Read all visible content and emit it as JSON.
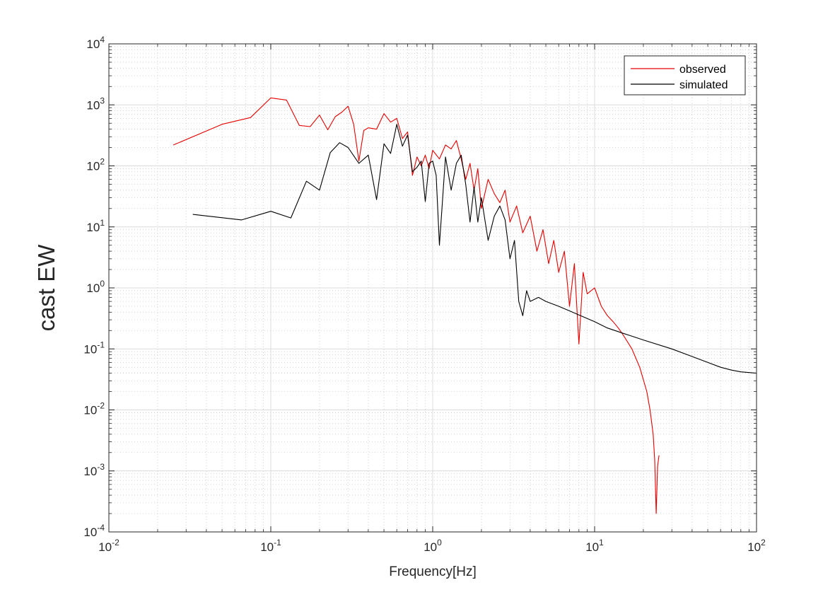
{
  "chart_data": {
    "type": "line",
    "xlabel": "Frequency[Hz]",
    "ylabel": "cast EW",
    "x_scale": "log",
    "y_scale": "log",
    "xlim": [
      0.01,
      100
    ],
    "ylim": [
      0.0001,
      10000
    ],
    "x_ticks": [
      0.01,
      0.1,
      1,
      10,
      100
    ],
    "x_tick_labels": [
      {
        "base": "10",
        "exp": "-2"
      },
      {
        "base": "10",
        "exp": "-1"
      },
      {
        "base": "10",
        "exp": "0"
      },
      {
        "base": "10",
        "exp": "1"
      },
      {
        "base": "10",
        "exp": "2"
      }
    ],
    "y_ticks": [
      0.0001,
      0.001,
      0.01,
      0.1,
      1,
      10,
      100,
      1000,
      10000
    ],
    "y_tick_labels": [
      {
        "base": "10",
        "exp": "-4"
      },
      {
        "base": "10",
        "exp": "-3"
      },
      {
        "base": "10",
        "exp": "-2"
      },
      {
        "base": "10",
        "exp": "-1"
      },
      {
        "base": "10",
        "exp": "0"
      },
      {
        "base": "10",
        "exp": "1"
      },
      {
        "base": "10",
        "exp": "2"
      },
      {
        "base": "10",
        "exp": "3"
      },
      {
        "base": "10",
        "exp": "4"
      }
    ],
    "grid": true,
    "minor_grid": true,
    "legend_position": "top-right",
    "series": [
      {
        "name": "observed",
        "color": "#e60000",
        "points": [
          [
            0.025,
            220
          ],
          [
            0.05,
            480
          ],
          [
            0.075,
            620
          ],
          [
            0.1,
            1300
          ],
          [
            0.125,
            1200
          ],
          [
            0.15,
            460
          ],
          [
            0.175,
            440
          ],
          [
            0.2,
            680
          ],
          [
            0.225,
            390
          ],
          [
            0.25,
            640
          ],
          [
            0.275,
            760
          ],
          [
            0.3,
            950
          ],
          [
            0.325,
            480
          ],
          [
            0.35,
            120
          ],
          [
            0.375,
            380
          ],
          [
            0.4,
            420
          ],
          [
            0.45,
            400
          ],
          [
            0.5,
            720
          ],
          [
            0.55,
            520
          ],
          [
            0.6,
            600
          ],
          [
            0.65,
            280
          ],
          [
            0.7,
            360
          ],
          [
            0.75,
            70
          ],
          [
            0.8,
            140
          ],
          [
            0.85,
            100
          ],
          [
            0.9,
            150
          ],
          [
            0.95,
            90
          ],
          [
            1.0,
            180
          ],
          [
            1.1,
            130
          ],
          [
            1.2,
            220
          ],
          [
            1.3,
            190
          ],
          [
            1.4,
            260
          ],
          [
            1.5,
            130
          ],
          [
            1.6,
            60
          ],
          [
            1.7,
            110
          ],
          [
            1.8,
            40
          ],
          [
            1.9,
            90
          ],
          [
            2.0,
            20
          ],
          [
            2.2,
            60
          ],
          [
            2.4,
            35
          ],
          [
            2.6,
            25
          ],
          [
            2.8,
            40
          ],
          [
            3.0,
            12
          ],
          [
            3.3,
            22
          ],
          [
            3.6,
            8
          ],
          [
            4.0,
            15
          ],
          [
            4.4,
            4
          ],
          [
            4.8,
            9
          ],
          [
            5.2,
            2.5
          ],
          [
            5.6,
            6
          ],
          [
            6.0,
            1.8
          ],
          [
            6.5,
            4
          ],
          [
            7.0,
            0.5
          ],
          [
            7.5,
            2.5
          ],
          [
            8.0,
            0.12
          ],
          [
            8.5,
            1.8
          ],
          [
            9.0,
            0.8
          ],
          [
            10.0,
            1.0
          ],
          [
            11.0,
            0.5
          ],
          [
            12.0,
            0.35
          ],
          [
            13.0,
            0.28
          ],
          [
            14.0,
            0.22
          ],
          [
            15.0,
            0.17
          ],
          [
            17.0,
            0.1
          ],
          [
            19.0,
            0.05
          ],
          [
            21.0,
            0.02
          ],
          [
            22.0,
            0.01
          ],
          [
            23.0,
            0.004
          ],
          [
            23.5,
            0.0015
          ],
          [
            24.0,
            0.0002
          ],
          [
            24.5,
            0.0012
          ],
          [
            25.0,
            0.0018
          ]
        ]
      },
      {
        "name": "simulated",
        "color": "#000000",
        "points": [
          [
            0.033,
            16
          ],
          [
            0.066,
            13
          ],
          [
            0.1,
            18
          ],
          [
            0.133,
            14
          ],
          [
            0.166,
            56
          ],
          [
            0.2,
            40
          ],
          [
            0.233,
            165
          ],
          [
            0.266,
            240
          ],
          [
            0.3,
            200
          ],
          [
            0.35,
            110
          ],
          [
            0.4,
            150
          ],
          [
            0.45,
            28
          ],
          [
            0.5,
            230
          ],
          [
            0.55,
            160
          ],
          [
            0.6,
            480
          ],
          [
            0.65,
            210
          ],
          [
            0.7,
            320
          ],
          [
            0.75,
            80
          ],
          [
            0.8,
            95
          ],
          [
            0.85,
            120
          ],
          [
            0.9,
            26
          ],
          [
            0.95,
            110
          ],
          [
            1.0,
            120
          ],
          [
            1.05,
            70
          ],
          [
            1.1,
            5
          ],
          [
            1.2,
            140
          ],
          [
            1.3,
            40
          ],
          [
            1.4,
            110
          ],
          [
            1.5,
            150
          ],
          [
            1.6,
            50
          ],
          [
            1.7,
            12
          ],
          [
            1.8,
            45
          ],
          [
            1.9,
            12
          ],
          [
            2.0,
            30
          ],
          [
            2.2,
            6
          ],
          [
            2.4,
            15
          ],
          [
            2.6,
            22
          ],
          [
            2.8,
            13
          ],
          [
            3.0,
            3
          ],
          [
            3.2,
            6
          ],
          [
            3.4,
            0.6
          ],
          [
            3.6,
            0.35
          ],
          [
            3.8,
            0.9
          ],
          [
            4.0,
            0.6
          ],
          [
            4.5,
            0.7
          ],
          [
            5.0,
            0.6
          ],
          [
            6.0,
            0.5
          ],
          [
            7.0,
            0.42
          ],
          [
            8.0,
            0.36
          ],
          [
            10.0,
            0.28
          ],
          [
            12.0,
            0.22
          ],
          [
            15.0,
            0.18
          ],
          [
            20.0,
            0.14
          ],
          [
            30.0,
            0.1
          ],
          [
            40.0,
            0.075
          ],
          [
            50.0,
            0.06
          ],
          [
            60.0,
            0.05
          ],
          [
            70.0,
            0.045
          ],
          [
            80.0,
            0.042
          ],
          [
            100.0,
            0.04
          ]
        ]
      }
    ]
  }
}
